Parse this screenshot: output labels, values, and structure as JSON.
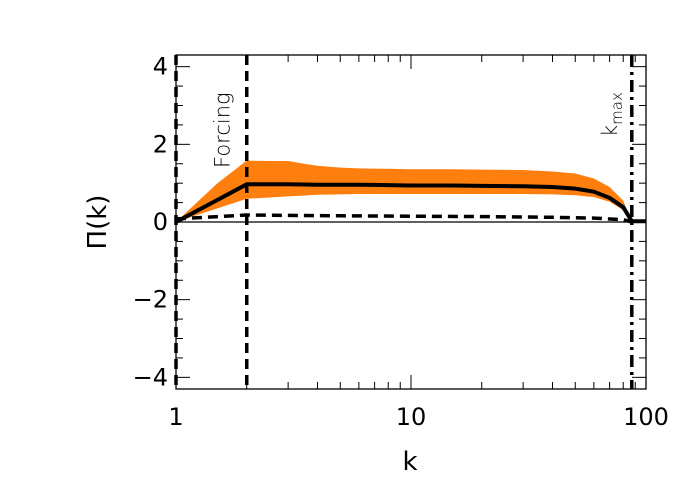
{
  "chart_data": {
    "type": "line",
    "title": "",
    "xlabel": "k",
    "ylabel": "Π(k)",
    "xscale": "log",
    "xlim": [
      1,
      100
    ],
    "ylim": [
      -4.3,
      4.3
    ],
    "x_ticks": [
      1,
      10,
      100
    ],
    "x_tick_labels": [
      "1",
      "10",
      "100"
    ],
    "y_ticks": [
      -4,
      -2,
      0,
      2,
      4
    ],
    "y_tick_labels": [
      "−4",
      "−2",
      "0",
      "2",
      "4"
    ],
    "grid": false,
    "legend": "none",
    "band": {
      "color": "#ff7f0e",
      "x": [
        1,
        1.5,
        2,
        2.5,
        3,
        3.5,
        4,
        5,
        6,
        8,
        10,
        15,
        20,
        30,
        40,
        50,
        60,
        70,
        80,
        87
      ],
      "lower": [
        0,
        0.35,
        0.6,
        0.63,
        0.66,
        0.68,
        0.7,
        0.71,
        0.72,
        0.72,
        0.72,
        0.72,
        0.72,
        0.72,
        0.71,
        0.69,
        0.64,
        0.52,
        0.3,
        0
      ],
      "upper": [
        0,
        1.0,
        1.58,
        1.57,
        1.57,
        1.5,
        1.45,
        1.4,
        1.38,
        1.37,
        1.36,
        1.36,
        1.35,
        1.34,
        1.3,
        1.25,
        1.12,
        0.9,
        0.55,
        0
      ]
    },
    "series": [
      {
        "x": [
          1,
          2,
          3,
          4,
          6,
          8,
          10,
          15,
          20,
          30,
          40,
          50,
          60,
          70,
          80,
          87,
          100
        ],
        "values": [
          0,
          0.97,
          0.97,
          0.96,
          0.96,
          0.95,
          0.94,
          0.94,
          0.93,
          0.92,
          0.9,
          0.86,
          0.78,
          0.62,
          0.38,
          0.02,
          0.02
        ],
        "style": "solid",
        "color": "#000000"
      },
      {
        "x": [
          1,
          2,
          3,
          5,
          10,
          20,
          40,
          60,
          80,
          87
        ],
        "values": [
          0.08,
          0.18,
          0.17,
          0.16,
          0.15,
          0.14,
          0.12,
          0.1,
          0.06,
          0
        ],
        "style": "dashed",
        "color": "#000000"
      }
    ],
    "zero_line": 0,
    "vertical_lines": [
      {
        "x": 1,
        "style": "dashed",
        "label": ""
      },
      {
        "x": 2,
        "style": "dashed",
        "label": "Forcing"
      },
      {
        "x": 87,
        "style": "dashdot",
        "label_main": "k",
        "label_sub": "max"
      }
    ]
  }
}
